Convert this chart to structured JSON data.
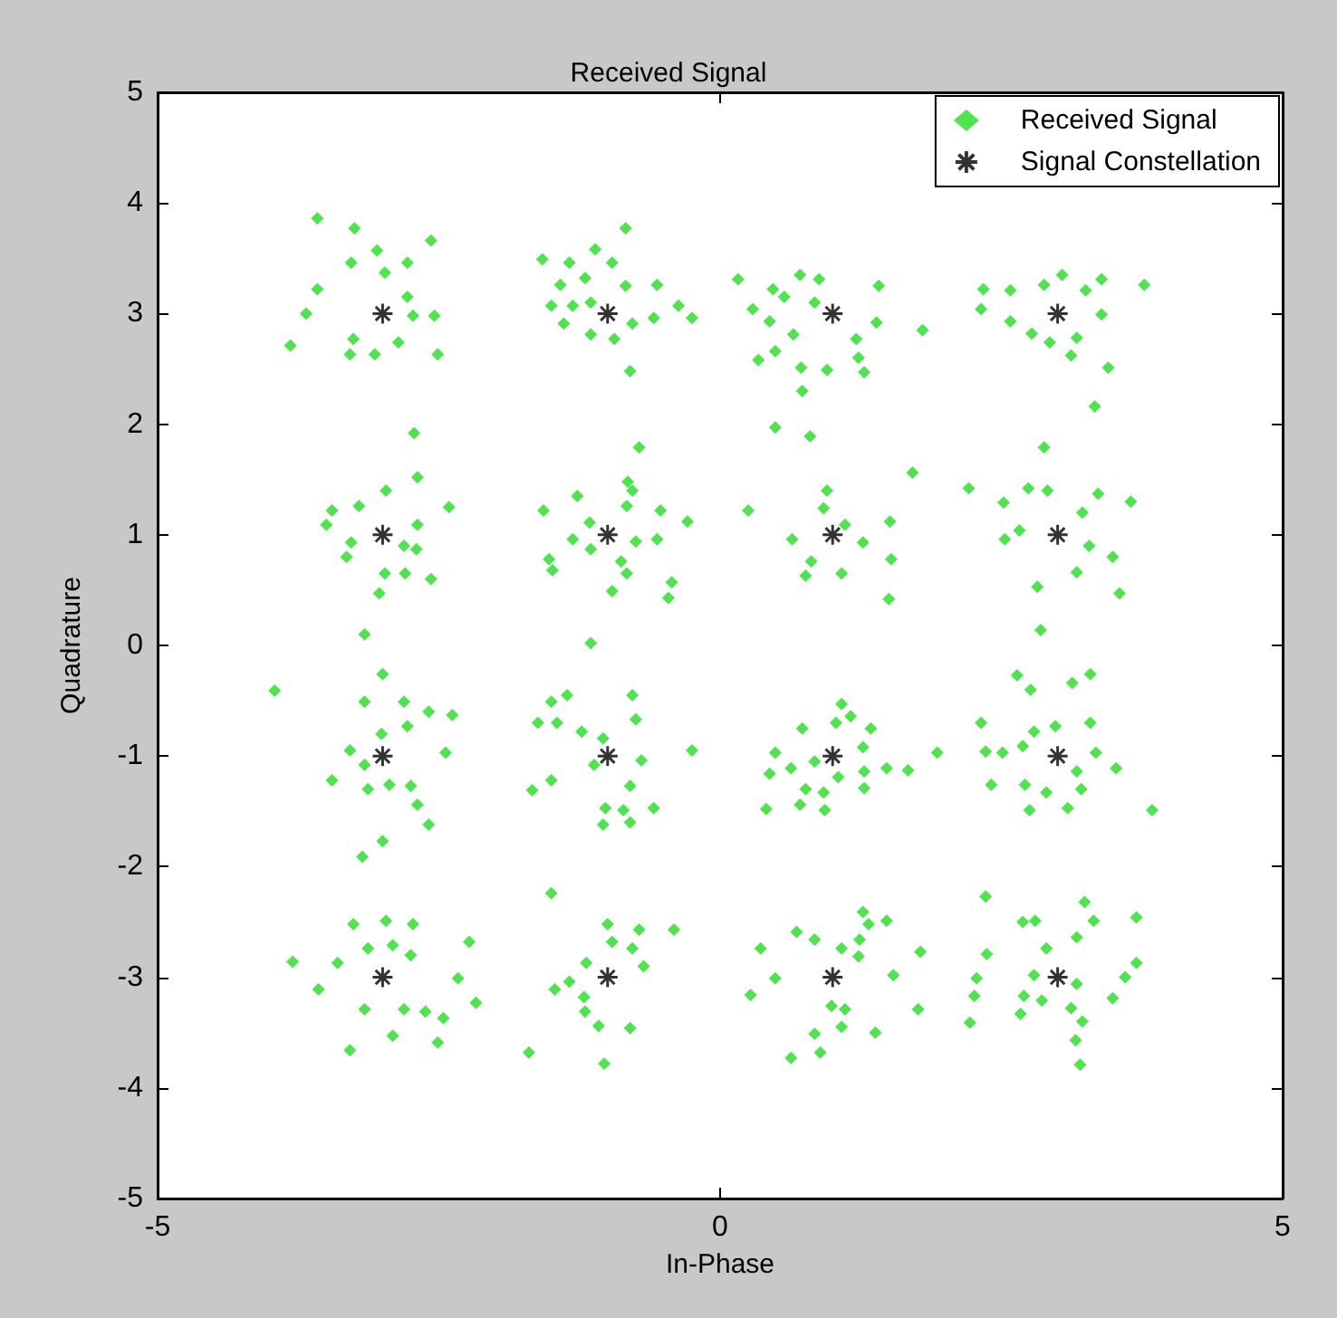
{
  "chart_data": {
    "type": "scatter",
    "title": "Received Signal",
    "xlabel": "In-Phase",
    "ylabel": "Quadrature",
    "xlim": [
      -5,
      5
    ],
    "xticks": [
      -5,
      0,
      5
    ],
    "ylim": [
      -5,
      5
    ],
    "yticks": [
      -5,
      -4,
      -3,
      -2,
      -1,
      0,
      1,
      2,
      3,
      4,
      5
    ],
    "grid": false,
    "legend": "top right",
    "series": [
      {
        "name": "Received Signal",
        "color": "#22dd22",
        "marker": "diamond",
        "x": [
          -3.58,
          -3.25,
          -2.57,
          -3.05,
          -2.78,
          -3.28,
          -2.98,
          -3.58,
          -3.68,
          -3.82,
          -3.26,
          -3.29,
          -3.07,
          -2.86,
          -2.51,
          -2.54,
          -2.73,
          -2.78,
          -1.58,
          -1.34,
          -1.11,
          -0.84,
          -0.96,
          -1.42,
          -1.2,
          -0.84,
          -0.56,
          -1.5,
          -1.31,
          -1.15,
          -0.59,
          -0.25,
          -0.37,
          -1.39,
          -1.15,
          -0.78,
          -0.94,
          -0.8,
          -2.72,
          -2.69,
          -2.97,
          -2.41,
          -3.45,
          -3.21,
          -3.5,
          -2.69,
          -3.28,
          -2.81,
          -2.7,
          -3.32,
          -2.98,
          -2.8,
          -2.57,
          -3.03,
          -3.16,
          -0.72,
          -0.82,
          -0.78,
          -1.27,
          -1.57,
          -0.83,
          -0.53,
          -0.29,
          -1.16,
          -1.31,
          -1.15,
          -0.75,
          -0.56,
          -1.52,
          -1.49,
          -0.88,
          -0.83,
          -0.43,
          -0.96,
          -0.46,
          -1.15,
          0.16,
          0.47,
          0.57,
          0.71,
          0.88,
          0.84,
          0.29,
          0.44,
          0.65,
          0.49,
          0.34,
          0.72,
          0.95,
          1.23,
          1.28,
          1.21,
          1.39,
          1.41,
          1.8,
          0.73,
          0.49,
          0.8,
          2.34,
          2.32,
          2.58,
          2.88,
          3.04,
          3.25,
          3.39,
          3.77,
          3.39,
          2.58,
          2.77,
          2.93,
          3.17,
          3.12,
          3.45,
          3.33,
          2.88,
          0.25,
          0.95,
          0.92,
          0.64,
          0.81,
          0.76,
          1.11,
          1.27,
          1.08,
          1.51,
          1.52,
          1.5,
          1.71,
          2.21,
          2.52,
          2.74,
          2.91,
          3.36,
          3.65,
          2.53,
          2.66,
          3.22,
          3.28,
          3.49,
          3.17,
          2.82,
          3.55,
          2.85,
          -3.96,
          -3.0,
          -3.16,
          -2.81,
          -2.59,
          -2.38,
          -3.01,
          -2.78,
          -3.29,
          -2.44,
          -3.16,
          -3.45,
          -3.13,
          -2.94,
          -2.75,
          -2.69,
          -2.59,
          -3.0,
          -3.18,
          -1.5,
          -1.36,
          -1.62,
          -1.45,
          -0.78,
          -0.75,
          -1.23,
          -1.04,
          -0.25,
          -0.7,
          -1.12,
          -1.5,
          -1.67,
          -0.8,
          -0.59,
          -1.02,
          -0.86,
          -1.04,
          -0.8,
          -1.5,
          -3.26,
          -2.97,
          -2.73,
          -2.23,
          -3.8,
          -3.4,
          -3.13,
          -2.91,
          -2.75,
          -3.57,
          -2.33,
          -2.17,
          -3.16,
          -2.81,
          -2.62,
          -2.46,
          -2.91,
          -2.51,
          -3.29,
          -1.0,
          -0.72,
          -0.41,
          -0.96,
          -0.78,
          -0.68,
          -1.19,
          -1.34,
          -1.47,
          -1.21,
          -1.2,
          -1.08,
          -0.8,
          -1.7,
          -1.03,
          1.08,
          1.16,
          0.73,
          1.03,
          1.34,
          0.49,
          0.84,
          1.27,
          0.44,
          0.63,
          1.05,
          1.28,
          1.48,
          1.67,
          1.93,
          0.76,
          0.92,
          1.28,
          0.41,
          0.71,
          0.93,
          2.64,
          2.76,
          3.13,
          3.29,
          2.32,
          2.98,
          3.29,
          2.79,
          2.36,
          2.51,
          2.69,
          3.34,
          3.52,
          3.17,
          2.41,
          2.71,
          2.9,
          3.21,
          3.09,
          2.75,
          3.84,
          1.27,
          1.32,
          1.48,
          0.68,
          0.84,
          1.08,
          1.24,
          0.36,
          1.23,
          1.78,
          0.49,
          1.54,
          0.27,
          0.99,
          1.11,
          1.76,
          1.08,
          0.84,
          1.38,
          0.63,
          0.89,
          2.36,
          2.69,
          2.8,
          3.24,
          3.32,
          3.7,
          3.17,
          2.37,
          2.9,
          2.28,
          2.79,
          3.17,
          3.7,
          3.6,
          2.26,
          2.7,
          2.86,
          3.12,
          3.49,
          2.22,
          2.67,
          3.22,
          3.16,
          3.2
        ],
        "values": [
          3.86,
          3.77,
          3.66,
          3.57,
          3.46,
          3.46,
          3.37,
          3.22,
          3.0,
          2.71,
          2.77,
          2.63,
          2.63,
          2.74,
          2.63,
          2.98,
          2.98,
          3.15,
          3.49,
          3.46,
          3.58,
          3.77,
          3.46,
          3.26,
          3.32,
          3.25,
          3.26,
          3.07,
          3.07,
          3.1,
          2.96,
          2.96,
          3.07,
          2.91,
          2.81,
          2.91,
          2.77,
          2.48,
          1.92,
          1.52,
          1.4,
          1.25,
          1.22,
          1.26,
          1.09,
          1.09,
          0.93,
          0.9,
          0.87,
          0.8,
          0.65,
          0.65,
          0.6,
          0.47,
          0.1,
          1.79,
          1.48,
          1.4,
          1.35,
          1.22,
          1.26,
          1.22,
          1.12,
          1.11,
          0.96,
          0.87,
          0.94,
          0.96,
          0.78,
          0.68,
          0.76,
          0.65,
          0.57,
          0.49,
          0.43,
          0.02,
          3.31,
          3.22,
          3.15,
          3.35,
          3.31,
          3.1,
          3.04,
          2.93,
          2.81,
          2.66,
          2.58,
          2.51,
          2.49,
          2.6,
          2.47,
          2.77,
          2.92,
          3.25,
          2.85,
          2.3,
          1.97,
          1.89,
          3.22,
          3.04,
          3.21,
          3.26,
          3.35,
          3.21,
          3.31,
          3.26,
          2.99,
          2.93,
          2.82,
          2.74,
          2.78,
          2.62,
          2.51,
          2.16,
          1.79,
          1.22,
          1.4,
          1.24,
          0.96,
          0.76,
          0.63,
          1.09,
          0.93,
          0.65,
          1.12,
          0.78,
          0.42,
          1.56,
          1.42,
          1.29,
          1.42,
          1.4,
          1.37,
          1.3,
          0.96,
          1.04,
          1.2,
          0.9,
          0.8,
          0.66,
          0.53,
          0.47,
          0.14,
          -0.41,
          -0.26,
          -0.51,
          -0.51,
          -0.6,
          -0.63,
          -0.8,
          -0.73,
          -0.95,
          -0.97,
          -1.08,
          -1.22,
          -1.3,
          -1.26,
          -1.27,
          -1.44,
          -1.62,
          -1.77,
          -1.91,
          -0.51,
          -0.45,
          -0.7,
          -0.7,
          -0.45,
          -0.67,
          -0.78,
          -0.84,
          -0.95,
          -1.04,
          -1.08,
          -1.22,
          -1.31,
          -1.27,
          -1.47,
          -1.47,
          -1.49,
          -1.62,
          -1.6,
          -2.24,
          -2.52,
          -2.49,
          -2.52,
          -2.68,
          -2.86,
          -2.87,
          -2.74,
          -2.71,
          -2.8,
          -3.11,
          -3.01,
          -3.23,
          -3.29,
          -3.29,
          -3.31,
          -3.37,
          -3.53,
          -3.59,
          -3.66,
          -2.52,
          -2.57,
          -2.57,
          -2.68,
          -2.74,
          -2.9,
          -2.87,
          -3.04,
          -3.11,
          -3.18,
          -3.31,
          -3.44,
          -3.46,
          -3.68,
          -3.78,
          -0.53,
          -0.64,
          -0.75,
          -0.7,
          -0.75,
          -0.97,
          -1.05,
          -0.92,
          -1.16,
          -1.11,
          -1.19,
          -1.14,
          -1.11,
          -1.13,
          -0.97,
          -1.3,
          -1.33,
          -1.29,
          -1.48,
          -1.44,
          -1.49,
          -0.27,
          -0.4,
          -0.34,
          -0.26,
          -0.7,
          -0.73,
          -0.7,
          -0.78,
          -0.96,
          -0.97,
          -0.91,
          -0.97,
          -1.11,
          -1.14,
          -1.26,
          -1.26,
          -1.33,
          -1.3,
          -1.47,
          -1.49,
          -1.49,
          -2.41,
          -2.52,
          -2.49,
          -2.59,
          -2.66,
          -2.74,
          -2.66,
          -2.74,
          -2.81,
          -2.77,
          -3.01,
          -2.98,
          -3.16,
          -3.26,
          -3.29,
          -3.29,
          -3.45,
          -3.51,
          -3.5,
          -3.73,
          -3.68,
          -2.27,
          -2.5,
          -2.49,
          -2.32,
          -2.49,
          -2.46,
          -2.64,
          -2.79,
          -2.74,
          -3.01,
          -2.98,
          -3.06,
          -2.87,
          -3.0,
          -3.17,
          -3.17,
          -3.21,
          -3.28,
          -3.19,
          -3.41,
          -3.33,
          -3.4,
          -3.57,
          -3.79
        ]
      },
      {
        "name": "Signal Constellation",
        "color": "#000000",
        "marker": "cross",
        "x": [
          -3,
          -1,
          1,
          3,
          -3,
          -1,
          1,
          3,
          -3,
          -1,
          1,
          3,
          -3,
          -1,
          1,
          3
        ],
        "values": [
          3,
          3,
          3,
          3,
          1,
          1,
          1,
          1,
          -1,
          -1,
          -1,
          -1,
          -3,
          -3,
          -3,
          -3
        ]
      }
    ]
  }
}
